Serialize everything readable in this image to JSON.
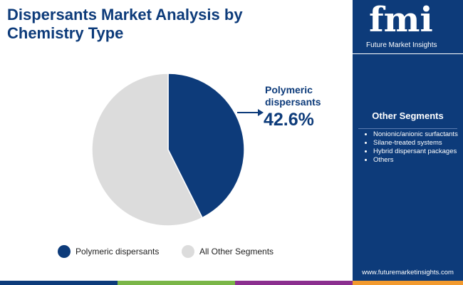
{
  "chart_data": {
    "type": "pie",
    "title": "Dispersants Market Analysis by Chemistry Type",
    "categories": [
      "Polymeric dispersants",
      "All Other Segments"
    ],
    "values": [
      42.6,
      57.4
    ],
    "value_labels": [
      "42.6%",
      null
    ],
    "colors": [
      "#0d3b7a",
      "#dcdcdc"
    ]
  },
  "side_panel": {
    "title": "Other Segments",
    "items": [
      "Nonionic/anionic surfactants",
      "Silane-treated systems",
      "Hybrid dispersant packages",
      "Others"
    ]
  },
  "brand": {
    "logo": "fmi",
    "name": "Future Market Insights",
    "url": "www.futuremarketinsights.com"
  }
}
